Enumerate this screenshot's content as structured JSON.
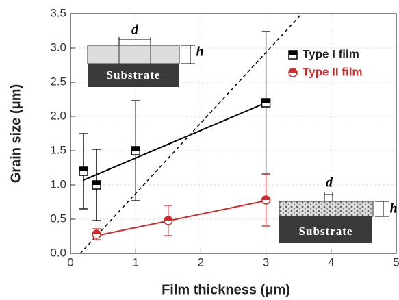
{
  "chart_data": {
    "type": "scatter",
    "xlabel": "Film thickness (μm)",
    "ylabel": "Grain size (μm)",
    "xlim": [
      0,
      5
    ],
    "ylim": [
      0,
      3.5
    ],
    "xticks": [
      0,
      1,
      2,
      3,
      4,
      5
    ],
    "yticks": [
      {
        "value": 0,
        "label": "0.0"
      },
      0.5,
      {
        "value": 1,
        "label": "1.0"
      },
      1.5,
      {
        "value": 2,
        "label": "2.0"
      },
      2.5,
      {
        "value": 3,
        "label": "3.0"
      },
      3.5
    ],
    "grid": true,
    "legend": "upper right",
    "series": [
      {
        "name": "Type I film",
        "color": "#000000",
        "marker": "square",
        "x": [
          0.2,
          0.4,
          1,
          3
        ],
        "values": [
          1.2,
          1.0,
          1.5,
          2.2
        ],
        "errors": [
          0.55,
          0.52,
          0.73,
          1.04
        ]
      },
      {
        "name": "Type II film",
        "color": "#d42a2a",
        "marker": "circle",
        "x": [
          0.4,
          1.5,
          3
        ],
        "values": [
          0.28,
          0.48,
          0.78
        ],
        "errors": [
          0.08,
          0.22,
          0.38
        ]
      }
    ],
    "lines": [
      {
        "color": "#000000",
        "dashed": false,
        "x": [
          0.2,
          3
        ],
        "values": [
          1.07,
          2.2
        ]
      },
      {
        "color": "#d42a2a",
        "dashed": false,
        "x": [
          0.4,
          3
        ],
        "values": [
          0.26,
          0.77
        ]
      },
      {
        "color": "#000000",
        "dashed": true,
        "x": [
          0.15,
          3.55
        ],
        "values": [
          0,
          3.5
        ]
      }
    ],
    "insets": [
      {
        "d": "d",
        "h": "h",
        "substrate": "Substrate"
      },
      {
        "d": "d",
        "h": "h",
        "substrate": "Substrate"
      }
    ]
  }
}
